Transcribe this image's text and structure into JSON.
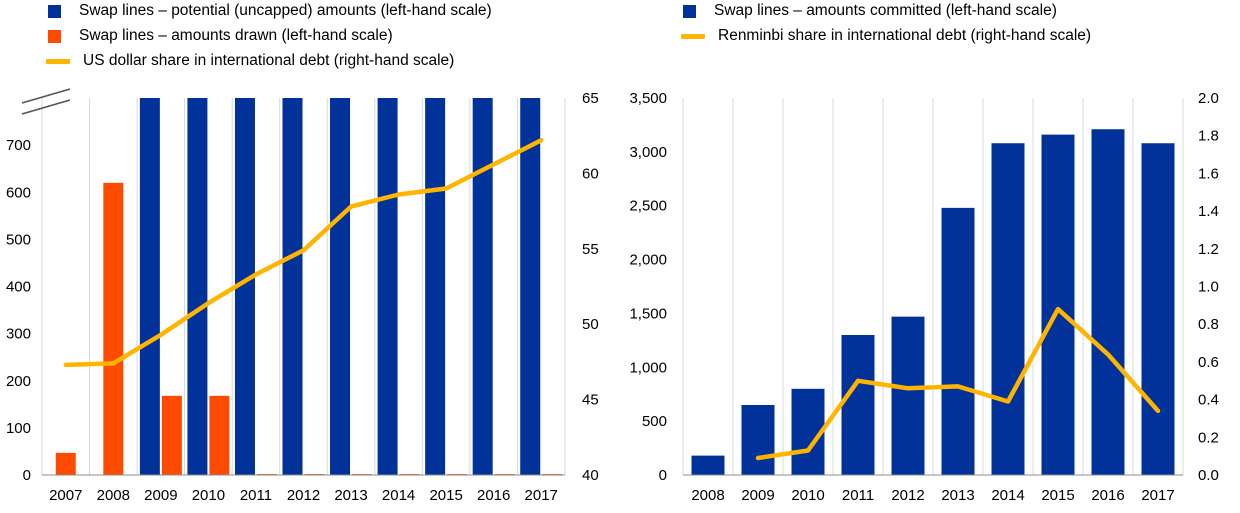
{
  "colors": {
    "blue": "#003299",
    "orange": "#ff4b00",
    "yellow": "#ffb400",
    "grid": "#d9d9d9",
    "axis": "#8c8c8c"
  },
  "chart_data": [
    {
      "type": "bar",
      "title": "",
      "categories": [
        "2007",
        "2008",
        "2009",
        "2010",
        "2011",
        "2012",
        "2013",
        "2014",
        "2015",
        "2016",
        "2017"
      ],
      "legend": [
        {
          "label": "Swap lines – potential (uncapped) amounts (left-hand scale)",
          "kind": "bar",
          "color": "#003299"
        },
        {
          "label": "Swap lines – amounts drawn (left-hand scale)",
          "kind": "bar",
          "color": "#ff4b00"
        },
        {
          "label": "US dollar share in international debt (right-hand scale)",
          "kind": "line",
          "color": "#ffb400"
        }
      ],
      "series": [
        {
          "name": "Swap lines – potential (uncapped) amounts",
          "axis": "left",
          "type": "bar",
          "color": "#003299",
          "values": [
            0,
            0,
            800,
            800,
            800,
            800,
            800,
            800,
            800,
            800,
            800
          ],
          "note": "uncapped amounts exceed axis (broken axis)"
        },
        {
          "name": "Swap lines – amounts drawn",
          "axis": "left",
          "type": "bar",
          "color": "#ff4b00",
          "values": [
            47,
            620,
            168,
            168,
            2,
            2,
            2,
            2,
            2,
            2,
            2
          ]
        },
        {
          "name": "US dollar share in international debt",
          "axis": "right",
          "type": "line",
          "color": "#ffb400",
          "values": [
            47.3,
            47.4,
            49.3,
            51.4,
            53.3,
            54.9,
            57.8,
            58.6,
            59.0,
            60.6,
            62.2
          ]
        }
      ],
      "left_axis": {
        "min": 0,
        "max": 800,
        "ticks": [
          0,
          100,
          200,
          300,
          400,
          500,
          600,
          700
        ],
        "tick_labels": [
          "0",
          "100",
          "200",
          "300",
          "400",
          "500",
          "600",
          "700"
        ],
        "break_symbol": true
      },
      "right_axis": {
        "min": 40,
        "max": 65,
        "ticks": [
          40,
          45,
          50,
          55,
          60,
          65
        ],
        "tick_labels": [
          "40",
          "45",
          "50",
          "55",
          "60",
          "65"
        ]
      },
      "grid": "vertical"
    },
    {
      "type": "bar",
      "title": "",
      "categories": [
        "2008",
        "2009",
        "2010",
        "2011",
        "2012",
        "2013",
        "2014",
        "2015",
        "2016",
        "2017"
      ],
      "legend": [
        {
          "label": "Swap lines – amounts committed (left-hand scale)",
          "kind": "bar",
          "color": "#003299"
        },
        {
          "label": "Renminbi share in international debt (right-hand scale)",
          "kind": "line",
          "color": "#ffb400"
        }
      ],
      "series": [
        {
          "name": "Swap lines – amounts committed",
          "axis": "left",
          "type": "bar",
          "color": "#003299",
          "values": [
            180,
            650,
            800,
            1300,
            1470,
            2480,
            3080,
            3160,
            3210,
            3080
          ]
        },
        {
          "name": "Renminbi share in international debt",
          "axis": "right",
          "type": "line",
          "color": "#ffb400",
          "values": [
            null,
            0.09,
            0.13,
            0.5,
            0.46,
            0.47,
            0.39,
            0.88,
            0.64,
            0.34
          ]
        }
      ],
      "left_axis": {
        "min": 0,
        "max": 3500,
        "ticks": [
          0,
          500,
          1000,
          1500,
          2000,
          2500,
          3000,
          3500
        ],
        "tick_labels": [
          "0",
          "500",
          "1,000",
          "1,500",
          "2,000",
          "2,500",
          "3,000",
          "3,500"
        ]
      },
      "right_axis": {
        "min": 0,
        "max": 2.0,
        "ticks": [
          0,
          0.2,
          0.4,
          0.6,
          0.8,
          1.0,
          1.2,
          1.4,
          1.6,
          1.8,
          2.0
        ],
        "tick_labels": [
          "0.0",
          "0.2",
          "0.4",
          "0.6",
          "0.8",
          "1.0",
          "1.2",
          "1.4",
          "1.6",
          "1.8",
          "2.0"
        ]
      },
      "grid": "vertical"
    }
  ]
}
